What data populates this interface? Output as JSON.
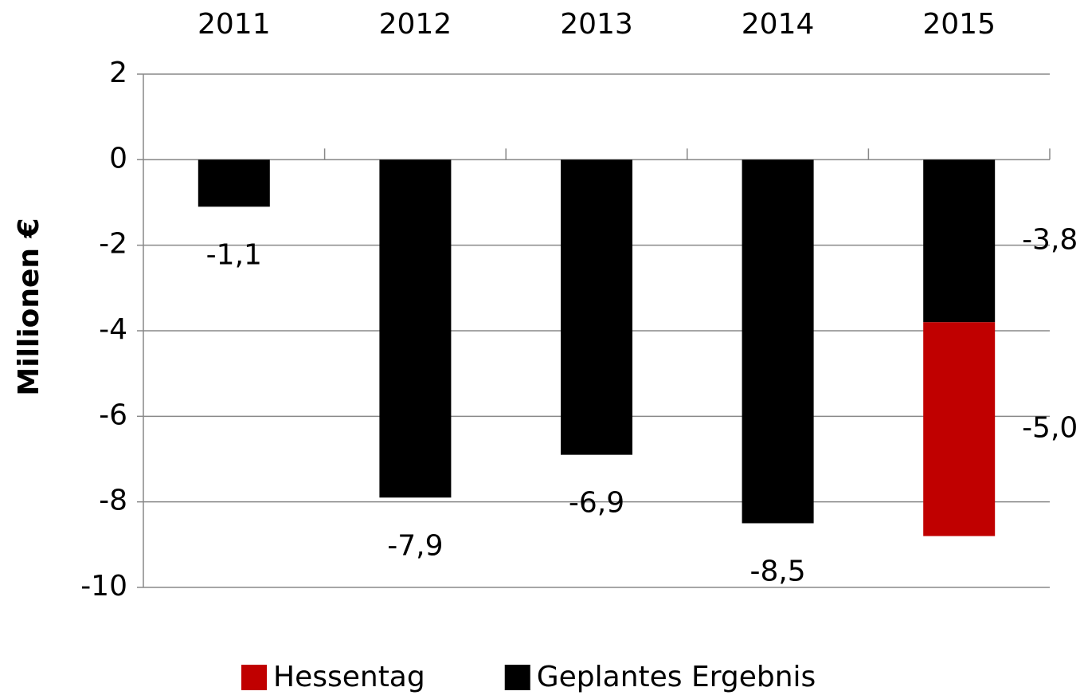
{
  "chart_data": {
    "type": "bar",
    "stacked": true,
    "categories": [
      "2011",
      "2012",
      "2013",
      "2014",
      "2015"
    ],
    "y_label": "Millionen  €",
    "series": [
      {
        "name": "Geplantes Ergebnis",
        "color": "#000000",
        "values": [
          -1.1,
          -7.9,
          -6.9,
          -8.5,
          -3.8
        ],
        "value_labels": [
          "-1,1",
          "-7,9",
          "-6,9",
          "-8,5",
          "-3,8"
        ]
      },
      {
        "name": "Hessentag",
        "color": "#c00000",
        "values": [
          null,
          null,
          null,
          null,
          -5.0
        ],
        "value_labels": [
          null,
          null,
          null,
          null,
          "-5,0"
        ]
      }
    ],
    "ylim": [
      -10,
      2
    ],
    "yticks": [
      -10,
      -8,
      -6,
      -4,
      -2,
      0,
      2
    ],
    "grid": true,
    "legend": "bottom"
  }
}
